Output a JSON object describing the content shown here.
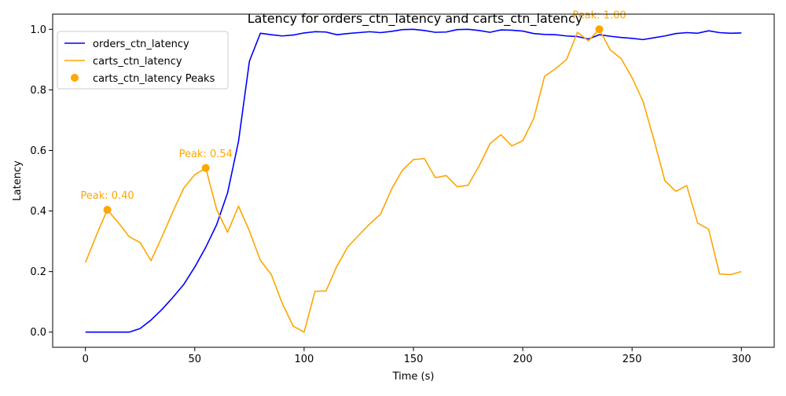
{
  "chart_data": {
    "type": "line",
    "title": "Latency for orders_ctn_latency and carts_ctn_latency",
    "xlabel": "Time (s)",
    "ylabel": "Latency",
    "xlim": [
      -15,
      315
    ],
    "ylim": [
      -0.05,
      1.05
    ],
    "x_ticks": [
      0,
      50,
      100,
      150,
      200,
      250,
      300
    ],
    "y_ticks": [
      0.0,
      0.2,
      0.4,
      0.6,
      0.8,
      1.0
    ],
    "x_tick_labels": [
      "0",
      "50",
      "100",
      "150",
      "200",
      "250",
      "300"
    ],
    "y_tick_labels": [
      "0.0",
      "0.2",
      "0.4",
      "0.6",
      "0.8",
      "1.0"
    ],
    "grid": false,
    "legend_position": "top-left",
    "x": [
      0,
      5,
      10,
      15,
      20,
      25,
      30,
      35,
      40,
      45,
      50,
      55,
      60,
      65,
      70,
      75,
      80,
      85,
      90,
      95,
      100,
      105,
      110,
      115,
      120,
      125,
      130,
      135,
      140,
      145,
      150,
      155,
      160,
      165,
      170,
      175,
      180,
      185,
      190,
      195,
      200,
      205,
      210,
      215,
      220,
      225,
      230,
      235,
      240,
      245,
      250,
      255,
      260,
      265,
      270,
      275,
      280,
      285,
      290,
      295,
      300
    ],
    "series": [
      {
        "name": "orders_ctn_latency",
        "color": "#0000ff",
        "values": [
          0.0,
          0.0,
          0.0,
          0.0,
          0.0,
          0.012,
          0.04,
          0.075,
          0.115,
          0.158,
          0.215,
          0.28,
          0.355,
          0.46,
          0.63,
          0.895,
          0.987,
          0.982,
          0.978,
          0.981,
          0.988,
          0.992,
          0.991,
          0.982,
          0.986,
          0.989,
          0.992,
          0.989,
          0.993,
          0.999,
          1.0,
          0.996,
          0.99,
          0.991,
          0.999,
          1.0,
          0.996,
          0.99,
          0.998,
          0.997,
          0.994,
          0.986,
          0.983,
          0.982,
          0.978,
          0.976,
          0.968,
          0.982,
          0.977,
          0.973,
          0.97,
          0.966,
          0.972,
          0.978,
          0.986,
          0.989,
          0.987,
          0.995,
          0.989,
          0.987,
          0.988
        ]
      },
      {
        "name": "carts_ctn_latency",
        "color": "#ffa500",
        "values": [
          0.23,
          0.32,
          0.404,
          0.362,
          0.315,
          0.296,
          0.236,
          0.315,
          0.398,
          0.476,
          0.52,
          0.542,
          0.405,
          0.33,
          0.416,
          0.334,
          0.237,
          0.19,
          0.095,
          0.02,
          0.0,
          0.135,
          0.136,
          0.218,
          0.282,
          0.32,
          0.357,
          0.39,
          0.472,
          0.535,
          0.57,
          0.573,
          0.51,
          0.517,
          0.48,
          0.485,
          0.548,
          0.622,
          0.652,
          0.615,
          0.632,
          0.705,
          0.845,
          0.87,
          0.9,
          0.99,
          0.962,
          1.0,
          0.932,
          0.903,
          0.84,
          0.762,
          0.635,
          0.5,
          0.465,
          0.484,
          0.36,
          0.34,
          0.192,
          0.19,
          0.2
        ]
      }
    ],
    "peaks": {
      "name": "carts_ctn_latency Peaks",
      "color": "#ffa500",
      "points": [
        {
          "x": 10,
          "y": 0.404,
          "label": "Peak: 0.40"
        },
        {
          "x": 55,
          "y": 0.542,
          "label": "Peak: 0.54"
        },
        {
          "x": 235,
          "y": 1.0,
          "label": "Peak: 1.00"
        }
      ]
    }
  }
}
